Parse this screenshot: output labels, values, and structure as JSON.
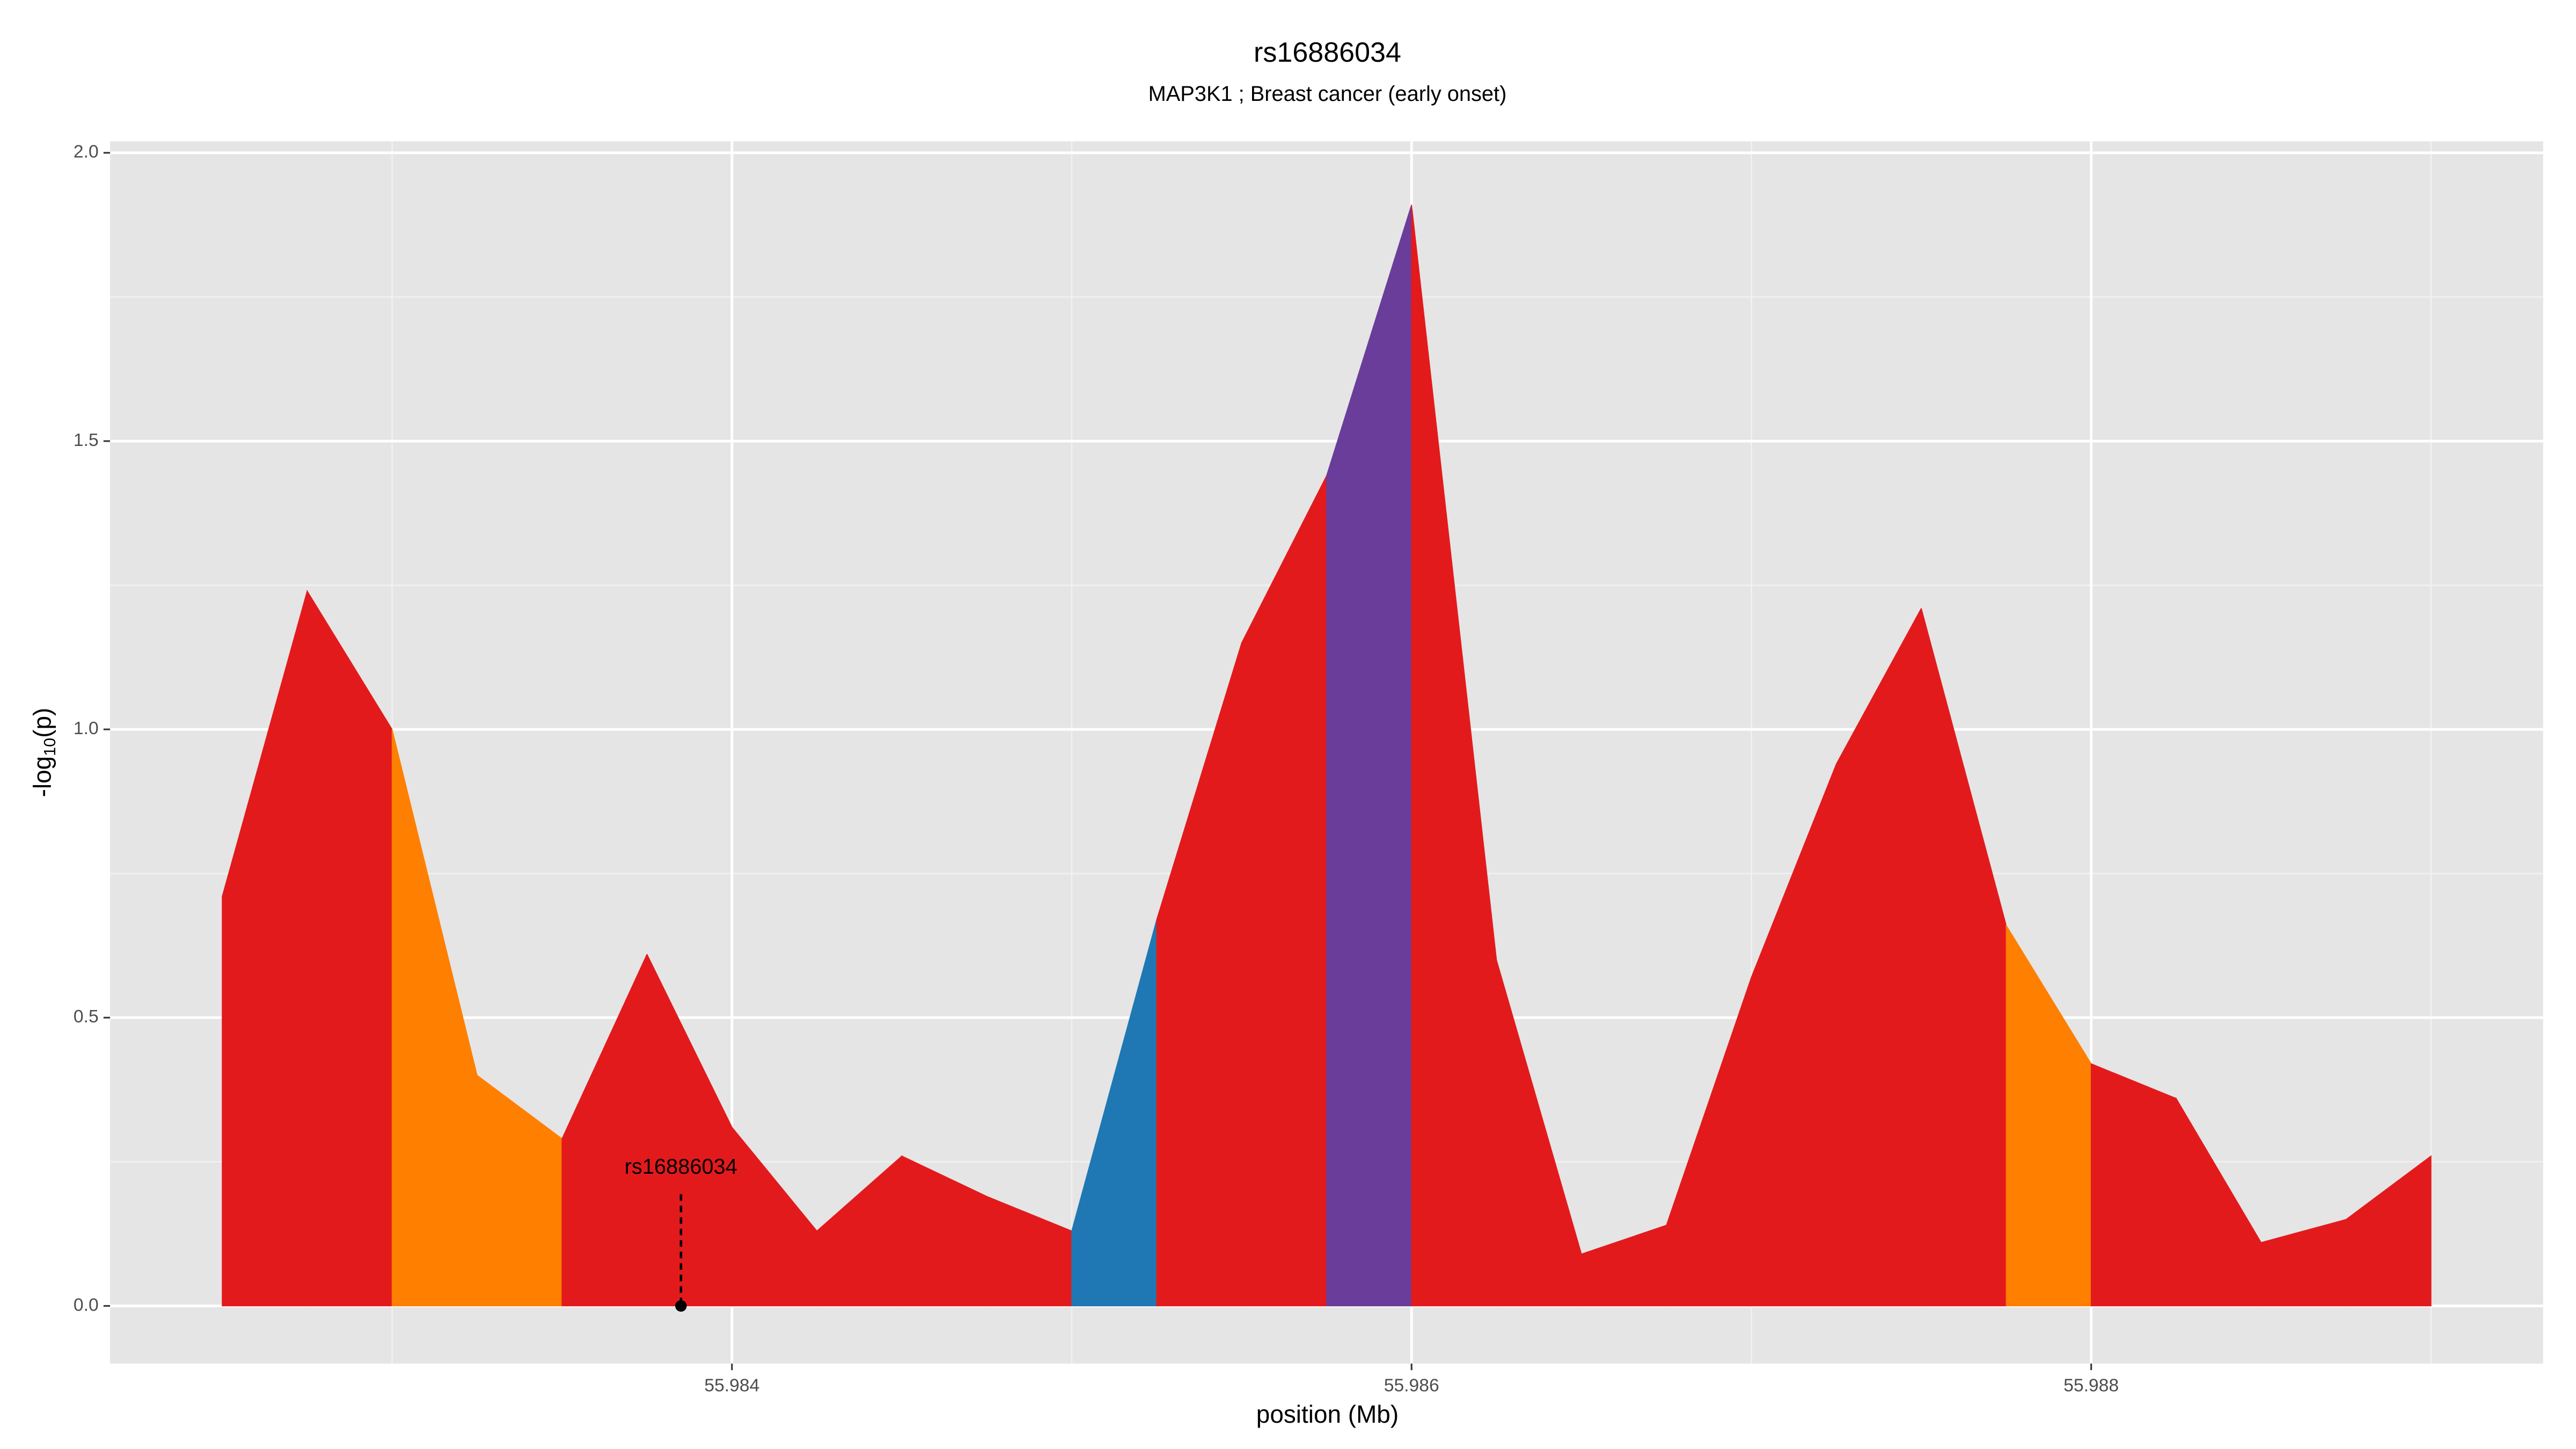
{
  "chart_data": {
    "type": "area",
    "title": "rs16886034",
    "subtitle": "MAP3K1 ; Breast cancer (early onset)",
    "x_label": "position (Mb)",
    "y_label": {
      "main": "-log",
      "sub": "10",
      "suffix": "(p)"
    },
    "x": [
      55.9825,
      55.98275,
      55.983,
      55.98325,
      55.9835,
      55.98375,
      55.984,
      55.98425,
      55.9845,
      55.98475,
      55.985,
      55.98525,
      55.9855,
      55.98575,
      55.986,
      55.98625,
      55.9865,
      55.98675,
      55.987,
      55.98725,
      55.9875,
      55.98775,
      55.988,
      55.98825,
      55.9885,
      55.98875,
      55.989
    ],
    "values": [
      0.71,
      1.24,
      1.0,
      0.4,
      0.29,
      0.61,
      0.31,
      0.13,
      0.26,
      0.19,
      0.13,
      0.67,
      1.15,
      1.44,
      1.91,
      0.6,
      0.09,
      0.14,
      0.57,
      0.94,
      1.21,
      0.66,
      0.42,
      0.36,
      0.11,
      0.15,
      0.26
    ],
    "segment_colors": [
      "#e31a1c",
      "#e31a1c",
      "#ff7f00",
      "#ff7f00",
      "#e31a1c",
      "#e31a1c",
      "#e31a1c",
      "#e31a1c",
      "#e31a1c",
      "#e31a1c",
      "#1f78b4",
      "#e31a1c",
      "#e31a1c",
      "#6a3d9a",
      "#e31a1c",
      "#e31a1c",
      "#e31a1c",
      "#e31a1c",
      "#e31a1c",
      "#e31a1c",
      "#e31a1c",
      "#ff7f00",
      "#e31a1c",
      "#e31a1c",
      "#e31a1c",
      "#e31a1c"
    ],
    "annotation": {
      "text": "rs16886034",
      "x": 55.98385
    },
    "xlim": [
      55.98217,
      55.98933
    ],
    "ylim": [
      -0.1,
      2.02
    ],
    "xticks": [
      55.984,
      55.986,
      55.988
    ],
    "xminorticks": [
      55.983,
      55.985,
      55.987,
      55.989
    ],
    "yticks": [
      {
        "value": 0,
        "label": "0.0"
      },
      {
        "value": 0.5,
        "label": "0.5"
      },
      {
        "value": 1,
        "label": "1.0"
      },
      {
        "value": 1.5,
        "label": "1.5"
      },
      {
        "value": 2,
        "label": "2.0"
      }
    ],
    "yminorticks": [
      0.25,
      0.75,
      1.25,
      1.75
    ],
    "grid": true
  }
}
